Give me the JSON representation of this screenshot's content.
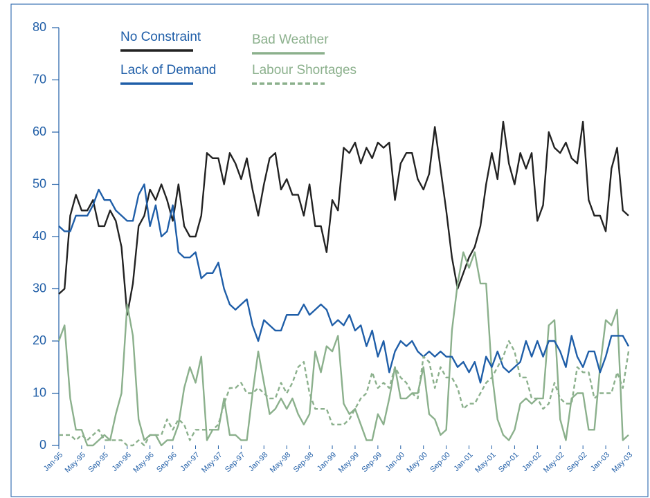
{
  "chart_data": {
    "type": "line",
    "categories": [
      "Jan-95",
      null,
      null,
      null,
      "May-95",
      null,
      null,
      null,
      "Sep-95",
      null,
      null,
      null,
      "Jan-96",
      null,
      null,
      null,
      "May-96",
      null,
      null,
      null,
      "Sep-96",
      null,
      null,
      null,
      "Jan-97",
      null,
      null,
      null,
      "May-97",
      null,
      null,
      null,
      "Sep-97",
      null,
      null,
      null,
      "Jan-98",
      null,
      null,
      null,
      "May-98",
      null,
      null,
      null,
      "Sep-98",
      null,
      null,
      null,
      "Jan-99",
      null,
      null,
      null,
      "May-99",
      null,
      null,
      null,
      "Sep-99",
      null,
      null,
      null,
      "Jan-00",
      null,
      null,
      null,
      "May-00",
      null,
      null,
      null,
      "Sep-00",
      null,
      null,
      null,
      "Jan-01",
      null,
      null,
      null,
      "May-01",
      null,
      null,
      null,
      "Sep-01",
      null,
      null,
      null,
      "Jan-02",
      null,
      null,
      null,
      "May-02",
      null,
      null,
      null,
      "Sep-02",
      null,
      null,
      null,
      "Jan-03",
      null,
      null,
      null,
      "May-03"
    ],
    "ylim": [
      0,
      80
    ],
    "yticks": [
      0,
      10,
      20,
      30,
      40,
      50,
      60,
      70,
      80
    ],
    "series": [
      {
        "name": "No Constraint",
        "color": "#222222",
        "style": "solid",
        "values": [
          29,
          30,
          44,
          48,
          45,
          45,
          47,
          42,
          42,
          45,
          43,
          38,
          25,
          31,
          42,
          44,
          49,
          47,
          50,
          47,
          43,
          50,
          42,
          40,
          40,
          44,
          56,
          55,
          55,
          50,
          56,
          54,
          51,
          55,
          49,
          44,
          50,
          55,
          56,
          49,
          51,
          48,
          48,
          44,
          50,
          42,
          42,
          37,
          47,
          45,
          57,
          56,
          58,
          54,
          57,
          55,
          58,
          57,
          58,
          47,
          54,
          56,
          56,
          51,
          49,
          52,
          61,
          53,
          45,
          36,
          30,
          33,
          36,
          38,
          42,
          50,
          56,
          51,
          62,
          54,
          50,
          56,
          53,
          56,
          43,
          46,
          60,
          57,
          56,
          58,
          55,
          54,
          62,
          47,
          44,
          44,
          41,
          53,
          57,
          45,
          44
        ]
      },
      {
        "name": "Bad Weather",
        "color": "#8bb08c",
        "style": "solid",
        "values": [
          20,
          23,
          9,
          3,
          3,
          0,
          0,
          1,
          2,
          1,
          6,
          10,
          27,
          21,
          5,
          1,
          2,
          2,
          0,
          1,
          1,
          4,
          11,
          15,
          12,
          17,
          1,
          3,
          3,
          9,
          2,
          2,
          1,
          1,
          10,
          18,
          12,
          6,
          7,
          9,
          7,
          9,
          6,
          4,
          6,
          18,
          14,
          19,
          18,
          21,
          8,
          6,
          7,
          4,
          1,
          1,
          6,
          4,
          9,
          15,
          9,
          9,
          10,
          10,
          15,
          6,
          5,
          2,
          3,
          22,
          31,
          37,
          34,
          37,
          31,
          31,
          14,
          5,
          2,
          1,
          3,
          8,
          9,
          8,
          9,
          9,
          23,
          24,
          5,
          1,
          9,
          10,
          10,
          3,
          3,
          15,
          24,
          23,
          26,
          1,
          2
        ]
      },
      {
        "name": "Lack of Demand",
        "color": "#1f5ea8",
        "style": "solid",
        "values": [
          42,
          41,
          41,
          44,
          44,
          44,
          46,
          49,
          47,
          47,
          45,
          44,
          43,
          43,
          48,
          50,
          42,
          46,
          40,
          41,
          46,
          37,
          36,
          36,
          37,
          32,
          33,
          33,
          35,
          30,
          27,
          26,
          27,
          28,
          23,
          20,
          24,
          23,
          22,
          22,
          25,
          25,
          25,
          27,
          25,
          26,
          27,
          26,
          23,
          24,
          23,
          25,
          22,
          23,
          19,
          22,
          17,
          20,
          14,
          18,
          20,
          19,
          20,
          18,
          17,
          18,
          17,
          18,
          17,
          17,
          15,
          16,
          14,
          16,
          12,
          17,
          15,
          18,
          15,
          14,
          15,
          16,
          20,
          17,
          20,
          17,
          20,
          20,
          18,
          15,
          21,
          17,
          15,
          18,
          18,
          14,
          17,
          21,
          21,
          21,
          19
        ]
      },
      {
        "name": "Labour Shortages",
        "color": "#8bb08c",
        "style": "dashed",
        "values": [
          2,
          2,
          2,
          1,
          2,
          1,
          2,
          3,
          1,
          1,
          1,
          1,
          0,
          0,
          1,
          0,
          2,
          2,
          2,
          5,
          3,
          5,
          4,
          1,
          3,
          3,
          3,
          3,
          4,
          8,
          11,
          11,
          12,
          10,
          10,
          11,
          10,
          9,
          9,
          12,
          10,
          12,
          15,
          16,
          10,
          7,
          7,
          7,
          4,
          4,
          4,
          5,
          7,
          9,
          10,
          14,
          11,
          12,
          11,
          15,
          13,
          12,
          10,
          9,
          17,
          16,
          11,
          15,
          13,
          13,
          11,
          7,
          8,
          8,
          10,
          12,
          13,
          15,
          17,
          20,
          18,
          13,
          13,
          9,
          9,
          7,
          8,
          12,
          9,
          8,
          8,
          15,
          14,
          14,
          9,
          10,
          10,
          10,
          14,
          11,
          18
        ]
      }
    ]
  }
}
